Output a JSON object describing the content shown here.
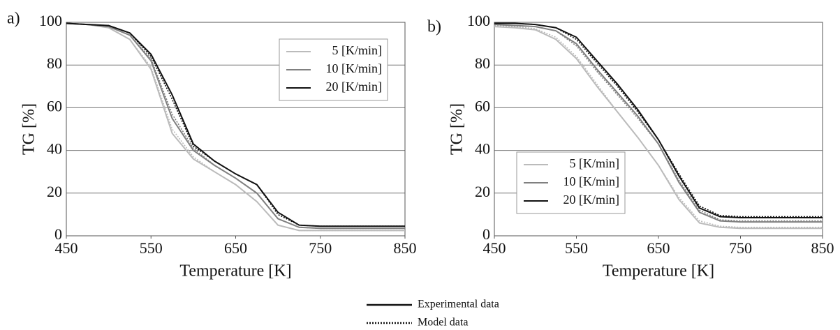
{
  "chart_data": [
    {
      "type": "line",
      "panel": "a)",
      "xlabel": "Temperature [K]",
      "ylabel": "TG [%]",
      "x": [
        450,
        475,
        500,
        525,
        550,
        575,
        600,
        625,
        650,
        675,
        700,
        725,
        750,
        775,
        800,
        825,
        850
      ],
      "xlim": [
        450,
        850
      ],
      "xticks": [
        450,
        550,
        650,
        750,
        850
      ],
      "ylim": [
        0,
        100
      ],
      "yticks": [
        0,
        20,
        40,
        60,
        80,
        100
      ],
      "grid": true,
      "legend": "upper right",
      "series": [
        {
          "name": "5 [K/min]",
          "color": "#bbbbbb",
          "values": [
            99.5,
            99,
            97.5,
            92,
            78,
            48,
            36,
            30,
            24,
            16,
            5,
            2.5,
            2.5,
            2.5,
            2.5,
            2.5,
            2.5
          ],
          "model_values": [
            99.5,
            99,
            97.5,
            92,
            79,
            50,
            37,
            30,
            24,
            16,
            5,
            2.5,
            2.5,
            2.5,
            2.5,
            2.5,
            2.5
          ]
        },
        {
          "name": "10 [K/min]",
          "color": "#808080",
          "values": [
            99.5,
            99,
            98,
            94,
            82,
            55,
            40,
            33,
            27,
            20,
            8,
            4,
            3.5,
            3.5,
            3.5,
            3.5,
            3.5
          ],
          "model_values": [
            99.5,
            99,
            98,
            94,
            83,
            57,
            41,
            33,
            27,
            20,
            8,
            4,
            3.5,
            3.5,
            3.5,
            3.5,
            3.5
          ]
        },
        {
          "name": "20 [K/min]",
          "color": "#111111",
          "values": [
            99.5,
            99,
            98.5,
            95,
            85,
            66,
            43,
            35,
            29,
            24,
            11,
            5,
            4.5,
            4.5,
            4.5,
            4.5,
            4.5
          ],
          "model_values": [
            99.5,
            99,
            98.5,
            95,
            84,
            64,
            42,
            35,
            29,
            24,
            10,
            5,
            4.5,
            4.5,
            4.5,
            4.5,
            4.5
          ]
        }
      ]
    },
    {
      "type": "line",
      "panel": "b)",
      "xlabel": "Temperature [K]",
      "ylabel": "TG [%]",
      "x": [
        450,
        475,
        500,
        525,
        550,
        575,
        600,
        625,
        650,
        675,
        700,
        725,
        750,
        775,
        800,
        825,
        850
      ],
      "xlim": [
        450,
        850
      ],
      "xticks": [
        450,
        550,
        650,
        750,
        850
      ],
      "ylim": [
        0,
        100
      ],
      "yticks": [
        0,
        20,
        40,
        60,
        80,
        100
      ],
      "grid": true,
      "legend": "lower left",
      "series": [
        {
          "name": "5 [K/min]",
          "color": "#bbbbbb",
          "values": [
            98,
            97.5,
            96.5,
            92,
            83,
            70,
            58,
            46,
            33,
            17,
            6,
            4,
            3.5,
            3.5,
            3.5,
            3.5,
            3.5
          ],
          "model_values": [
            98.5,
            98,
            97,
            93,
            84,
            71,
            58,
            46,
            33,
            18,
            7,
            4.5,
            4,
            4,
            4,
            4,
            4
          ]
        },
        {
          "name": "10 [K/min]",
          "color": "#808080",
          "values": [
            99,
            98.5,
            98,
            96,
            90,
            78,
            67,
            56,
            43,
            25,
            11,
            7,
            6.5,
            6.5,
            6.5,
            6.5,
            6.5
          ],
          "model_values": [
            99,
            98.5,
            98,
            96,
            89,
            77,
            66,
            55,
            43,
            26,
            12,
            7.5,
            7,
            7,
            7,
            7,
            7
          ]
        },
        {
          "name": "20 [K/min]",
          "color": "#111111",
          "values": [
            99.5,
            99.5,
            99,
            97.5,
            93,
            82,
            71,
            59,
            45,
            28,
            13,
            9,
            8.5,
            8.5,
            8.5,
            8.5,
            8.5
          ],
          "model_values": [
            99.5,
            99.5,
            99,
            97.5,
            92,
            81,
            70,
            58,
            45,
            29,
            14,
            9.5,
            9,
            9,
            9,
            9,
            9
          ]
        }
      ]
    }
  ],
  "line_styles": [
    {
      "label": "Experimental data"
    },
    {
      "label": "Model data"
    }
  ]
}
